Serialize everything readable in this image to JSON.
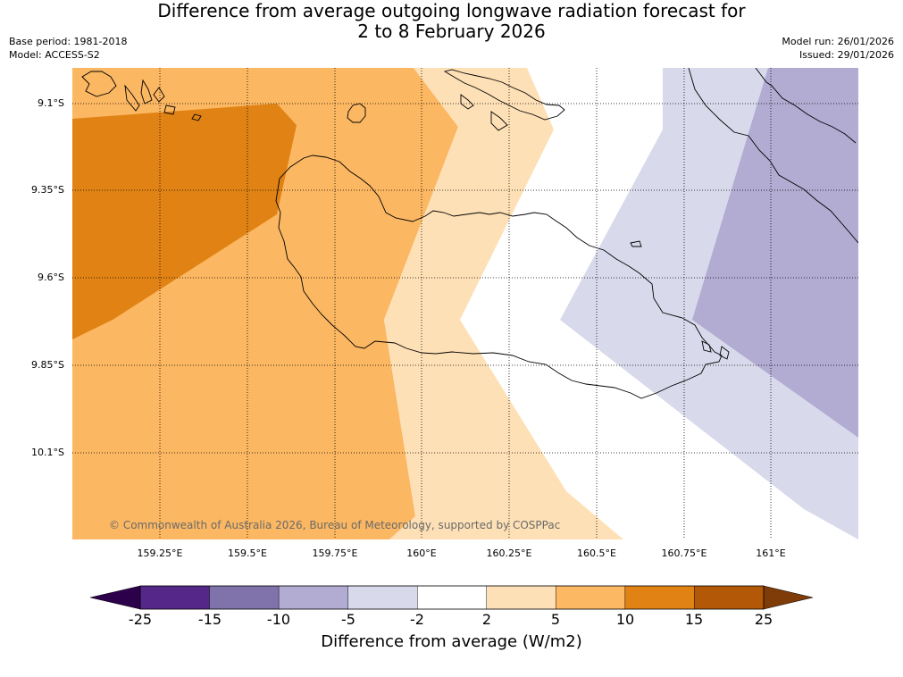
{
  "title": {
    "line1": "Difference from average outgoing longwave radiation forecast for",
    "line2": "2 to 8 February 2026"
  },
  "meta": {
    "base_period": "Base period: 1981-2018",
    "model": "Model: ACCESS-S2",
    "model_run": "Model run: 26/01/2026",
    "issued": "Issued: 29/01/2026"
  },
  "map": {
    "lat_labels": [
      "9.1°S",
      "9.35°S",
      "9.6°S",
      "9.85°S",
      "10.1°S"
    ],
    "lon_labels": [
      "159.25°E",
      "159.5°E",
      "159.75°E",
      "160°E",
      "160.25°E",
      "160.5°E",
      "160.75°E",
      "161°E"
    ],
    "copyright": "© Commonwealth of Australia 2026, Bureau of Meteorology, supported by COSPPac",
    "region_colors": {
      "orange_light": "#fbb762",
      "orange_mid": "#e08214",
      "peach": "#fee0b6",
      "lavender_light": "#d8daeb",
      "lavender_mid": "#b2abd2"
    }
  },
  "colorbar": {
    "ticks": [
      "-25",
      "-15",
      "-10",
      "-5",
      "-2",
      "2",
      "5",
      "10",
      "15",
      "25"
    ],
    "colors": [
      "#542788",
      "#8073ac",
      "#b2abd2",
      "#d8daeb",
      "#ffffff",
      "#fee0b6",
      "#fdb863",
      "#e08214",
      "#b35806"
    ],
    "extend_low_color": "#2d004b",
    "extend_high_color": "#7f3b08",
    "label": "Difference from average (W/m2)"
  }
}
